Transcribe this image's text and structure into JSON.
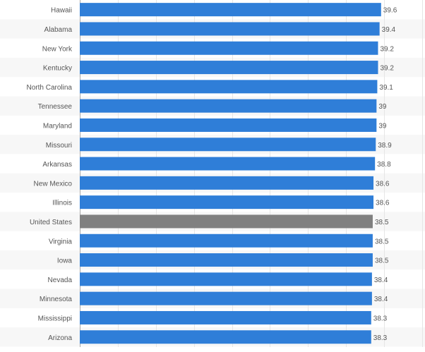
{
  "chart_data": {
    "type": "bar",
    "orientation": "horizontal",
    "categories": [
      "Hawaii",
      "Alabama",
      "New York",
      "Kentucky",
      "North Carolina",
      "Tennessee",
      "Maryland",
      "Missouri",
      "Arkansas",
      "New Mexico",
      "Illinois",
      "United States",
      "Virginia",
      "Iowa",
      "Nevada",
      "Minnesota",
      "Mississippi",
      "Arizona"
    ],
    "values": [
      39.6,
      39.4,
      39.2,
      39.2,
      39.1,
      39,
      39,
      38.9,
      38.8,
      38.6,
      38.6,
      38.5,
      38.5,
      38.5,
      38.4,
      38.4,
      38.3,
      38.3
    ],
    "value_labels": [
      "39.6",
      "39.4",
      "39.2",
      "39.2",
      "39.1",
      "39",
      "39",
      "38.9",
      "38.8",
      "38.6",
      "38.6",
      "38.5",
      "38.5",
      "38.5",
      "38.4",
      "38.4",
      "38.3",
      "38.3"
    ],
    "highlight_category": "United States",
    "xlim": [
      0,
      45
    ],
    "grid": true,
    "title": "",
    "xlabel": "",
    "ylabel": ""
  },
  "colors": {
    "bar": "#2f7ed8",
    "highlight_bar": "#808080",
    "grid": "#e6e6e6",
    "band_alt": "#f7f7f7",
    "label": "#555555",
    "value_label": "#555555",
    "axis": "#aaaaaa"
  }
}
